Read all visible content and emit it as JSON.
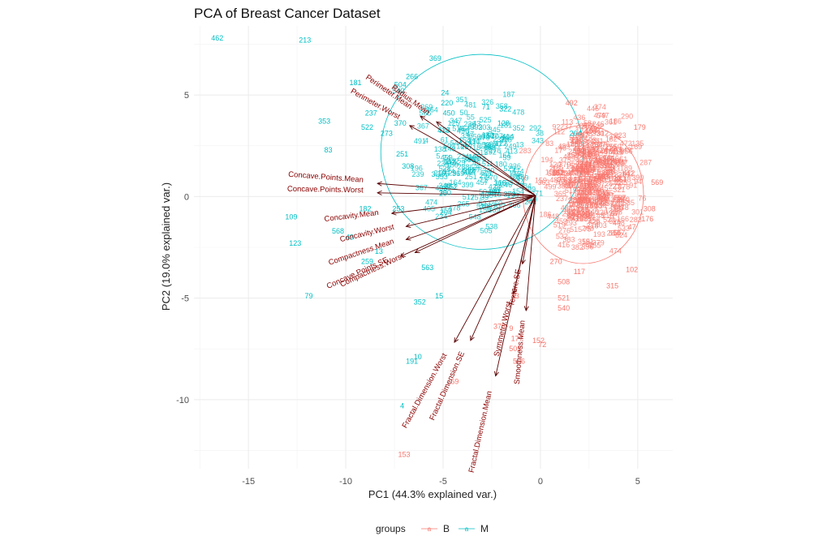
{
  "chart_data": {
    "type": "scatter",
    "title": "PCA of Breast Cancer Dataset",
    "xlabel": "PC1 (44.3% explained var.)",
    "ylabel": "PC2 (19.0% explained var.)",
    "xlim": [
      -17.8,
      6.8
    ],
    "ylim": [
      -13.4,
      8.4
    ],
    "xticks": [
      -15,
      -10,
      -5,
      0,
      5
    ],
    "yticks": [
      -10,
      -5,
      0,
      5
    ],
    "grid": true,
    "legend": {
      "title": "groups",
      "position": "bottom",
      "entries": [
        "B",
        "M"
      ]
    },
    "colors": {
      "B": "#F8766D",
      "M": "#00BFC4",
      "loadings": "#8B0000",
      "grid": "#EBEBEB"
    },
    "ellipses": [
      {
        "group": "M",
        "cx": -3.0,
        "cy": 2.2,
        "rx": 5.2,
        "ry": 4.8
      },
      {
        "group": "B",
        "cx": 2.2,
        "cy": 0.1,
        "rx": 3.1,
        "ry": 3.4
      }
    ],
    "series": [
      {
        "name": "M",
        "points": [
          {
            "id": "462",
            "x": -16.6,
            "y": 7.8
          },
          {
            "id": "213",
            "x": -12.1,
            "y": 7.7
          },
          {
            "id": "369",
            "x": -5.4,
            "y": 6.8
          },
          {
            "id": "266",
            "x": -6.6,
            "y": 5.9
          },
          {
            "id": "181",
            "x": -9.5,
            "y": 5.6
          },
          {
            "id": "504",
            "x": -7.2,
            "y": 5.5
          },
          {
            "id": "540",
            "x": -7.3,
            "y": 5.2
          },
          {
            "id": "24",
            "x": -4.9,
            "y": 5.1
          },
          {
            "id": "220",
            "x": -4.8,
            "y": 4.6
          },
          {
            "id": "71",
            "x": -2.8,
            "y": 4.4
          },
          {
            "id": "322",
            "x": -1.8,
            "y": 4.3
          },
          {
            "id": "237",
            "x": -8.7,
            "y": 4.1
          },
          {
            "id": "450",
            "x": -4.7,
            "y": 4.1
          },
          {
            "id": "353",
            "x": -11.1,
            "y": 3.7
          },
          {
            "id": "522",
            "x": -8.9,
            "y": 3.4
          },
          {
            "id": "370",
            "x": -7.2,
            "y": 3.6
          },
          {
            "id": "128",
            "x": -1.9,
            "y": 3.6
          },
          {
            "id": "273",
            "x": -7.9,
            "y": 3.1
          },
          {
            "id": "264",
            "x": 1.8,
            "y": 3.1
          },
          {
            "id": "83",
            "x": -10.9,
            "y": 2.3
          },
          {
            "id": "251",
            "x": -7.1,
            "y": 2.1
          },
          {
            "id": "308",
            "x": -6.8,
            "y": 1.5
          },
          {
            "id": "3",
            "x": -5.5,
            "y": 1.1
          },
          {
            "id": "390",
            "x": -4.9,
            "y": 0.2
          },
          {
            "id": "182",
            "x": -9.0,
            "y": -0.6
          },
          {
            "id": "253",
            "x": -7.3,
            "y": -0.6
          },
          {
            "id": "109",
            "x": -12.8,
            "y": -1.0
          },
          {
            "id": "568",
            "x": -10.4,
            "y": -1.7
          },
          {
            "id": "43",
            "x": -9.8,
            "y": -2.0
          },
          {
            "id": "123",
            "x": -12.6,
            "y": -2.3
          },
          {
            "id": "13",
            "x": -8.3,
            "y": -2.7
          },
          {
            "id": "259",
            "x": -8.9,
            "y": -3.2
          },
          {
            "id": "563",
            "x": -5.8,
            "y": -3.5
          },
          {
            "id": "79",
            "x": -11.9,
            "y": -4.9
          },
          {
            "id": "352",
            "x": -6.2,
            "y": -5.2
          },
          {
            "id": "15",
            "x": -5.2,
            "y": -4.9
          },
          {
            "id": "10",
            "x": -6.3,
            "y": -7.9
          },
          {
            "id": "191",
            "x": -6.6,
            "y": -8.1
          },
          {
            "id": "4",
            "x": -7.1,
            "y": -10.3
          }
        ]
      },
      {
        "name": "B",
        "points": [
          {
            "id": "492",
            "x": 1.6,
            "y": 4.6
          },
          {
            "id": "179",
            "x": 5.1,
            "y": 3.4
          },
          {
            "id": "312",
            "x": 3.2,
            "y": 3.1
          },
          {
            "id": "158",
            "x": 1.9,
            "y": 3.0
          },
          {
            "id": "569",
            "x": 6.0,
            "y": 0.7
          },
          {
            "id": "308",
            "x": 5.6,
            "y": -0.6
          },
          {
            "id": "176",
            "x": 5.5,
            "y": -1.1
          },
          {
            "id": "47",
            "x": 4.7,
            "y": -1.5
          },
          {
            "id": "102",
            "x": 4.7,
            "y": -3.6
          },
          {
            "id": "315",
            "x": 3.7,
            "y": -4.4
          },
          {
            "id": "270",
            "x": 0.8,
            "y": -3.2
          },
          {
            "id": "117",
            "x": 2.0,
            "y": -3.7
          },
          {
            "id": "508",
            "x": 1.2,
            "y": -4.2
          },
          {
            "id": "521",
            "x": 1.2,
            "y": -5.0
          },
          {
            "id": "540",
            "x": 1.2,
            "y": -5.5
          },
          {
            "id": "43",
            "x": -1.3,
            "y": -4.9
          },
          {
            "id": "375",
            "x": -2.1,
            "y": -6.4
          },
          {
            "id": "9",
            "x": -1.5,
            "y": -6.5
          },
          {
            "id": "177",
            "x": -1.2,
            "y": -7.0
          },
          {
            "id": "152",
            "x": -0.1,
            "y": -7.1
          },
          {
            "id": "72",
            "x": 0.1,
            "y": -7.3
          },
          {
            "id": "505",
            "x": -1.3,
            "y": -7.5
          },
          {
            "id": "506",
            "x": -1.1,
            "y": -8.1
          },
          {
            "id": "69",
            "x": -4.4,
            "y": -9.1
          },
          {
            "id": "153",
            "x": -7.0,
            "y": -12.7
          }
        ]
      }
    ],
    "loadings": [
      {
        "label": "Concave.Points.Mean",
        "x": -9.1,
        "y": 0.7
      },
      {
        "label": "Concave.Points.Worst",
        "x": -9.1,
        "y": 0.2
      },
      {
        "label": "Concavity.Mean",
        "x": -8.3,
        "y": -0.9
      },
      {
        "label": "Concavity.Worst",
        "x": -7.5,
        "y": -1.6
      },
      {
        "label": "Compactness.Mean",
        "x": -7.5,
        "y": -2.3
      },
      {
        "label": "Compactness.Worst",
        "x": -7.0,
        "y": -3.0
      },
      {
        "label": "Concave.Points.SE",
        "x": -7.8,
        "y": -3.2
      },
      {
        "label": "Perimeter.Mean",
        "x": -6.7,
        "y": 4.3
      },
      {
        "label": "Perimeter.Worst",
        "x": -7.3,
        "y": 3.8
      },
      {
        "label": "Radius.Mean",
        "x": -5.8,
        "y": 4.0
      },
      {
        "label": "Fractal.Dimension.Worst",
        "x": -4.8,
        "y": -7.8
      },
      {
        "label": "Fractal.Dimension.SE",
        "x": -3.9,
        "y": -7.7
      },
      {
        "label": "Fractal.Dimension.Mean",
        "x": -2.5,
        "y": -9.6
      },
      {
        "label": "Symmetry.Worst",
        "x": -1.5,
        "y": -5.2
      },
      {
        "label": "Smoothness.Mean",
        "x": -0.8,
        "y": -6.1
      },
      {
        "label": "Texture.SE",
        "x": -1.0,
        "y": -3.6
      }
    ]
  }
}
